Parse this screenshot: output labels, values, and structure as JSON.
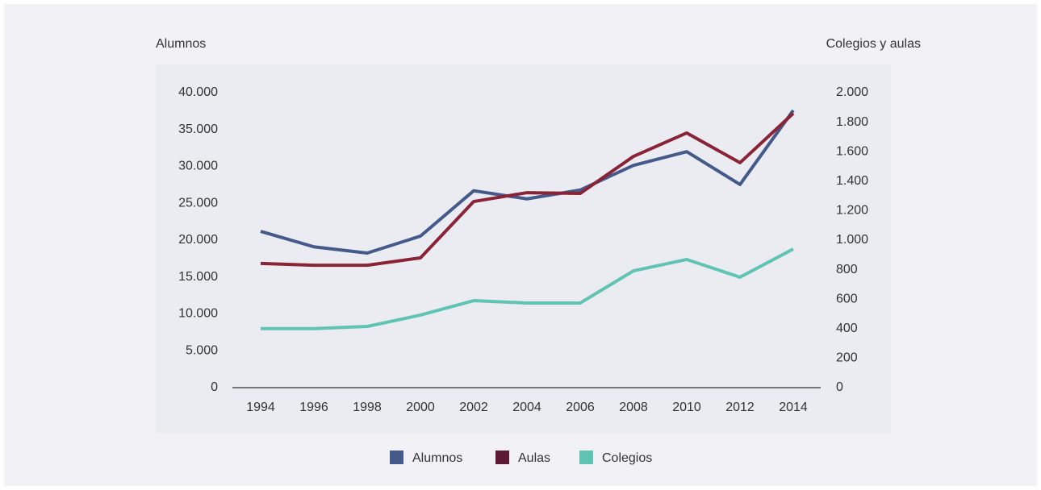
{
  "chart_data": {
    "type": "line",
    "y_label": "Alumnos",
    "y2_label": "Colegios y aulas",
    "x": [
      "1994",
      "1996",
      "1998",
      "2000",
      "2002",
      "2004",
      "2006",
      "2008",
      "2010",
      "2012",
      "2014"
    ],
    "series": [
      {
        "name": "Alumnos",
        "color": "#435a8a",
        "values": [
          21200,
          19100,
          18250,
          20550,
          26700,
          25600,
          26800,
          30150,
          32000,
          27550,
          37600
        ]
      },
      {
        "name": "Aulas",
        "color": "#8b2336",
        "legend_color": "#5c1a35",
        "axis": "y2",
        "values": [
          842,
          830,
          830,
          880,
          1262,
          1322,
          1317,
          1568,
          1727,
          1525,
          1860
        ]
      },
      {
        "name": "Colegios",
        "color": "#5fc4b4",
        "axis": "y2",
        "values": [
          400,
          400,
          415,
          492,
          590,
          574,
          574,
          792,
          869,
          749,
          940
        ]
      }
    ],
    "ylim": [
      0,
      40000
    ],
    "yticks": [
      0,
      {
        "value": 5000,
        "label": "5.000"
      },
      {
        "value": 10000,
        "label": "10.000"
      },
      {
        "value": 15000,
        "label": "15.000"
      },
      {
        "value": 20000,
        "label": "20.000"
      },
      {
        "value": 25000,
        "label": "25.000"
      },
      {
        "value": 30000,
        "label": "30.000"
      },
      {
        "value": 35000,
        "label": "35.000"
      },
      {
        "value": 40000,
        "label": "40.000"
      }
    ],
    "y2lim": [
      0,
      2000
    ],
    "y2ticks": [
      0,
      200,
      400,
      600,
      800,
      {
        "value": 1000,
        "label": "1.000"
      },
      {
        "value": 1200,
        "label": "1.200"
      },
      {
        "value": 1400,
        "label": "1.400"
      },
      {
        "value": 1600,
        "label": "1.600"
      },
      {
        "value": 1800,
        "label": "1.800"
      },
      {
        "value": 2000,
        "label": "2.000"
      }
    ]
  }
}
